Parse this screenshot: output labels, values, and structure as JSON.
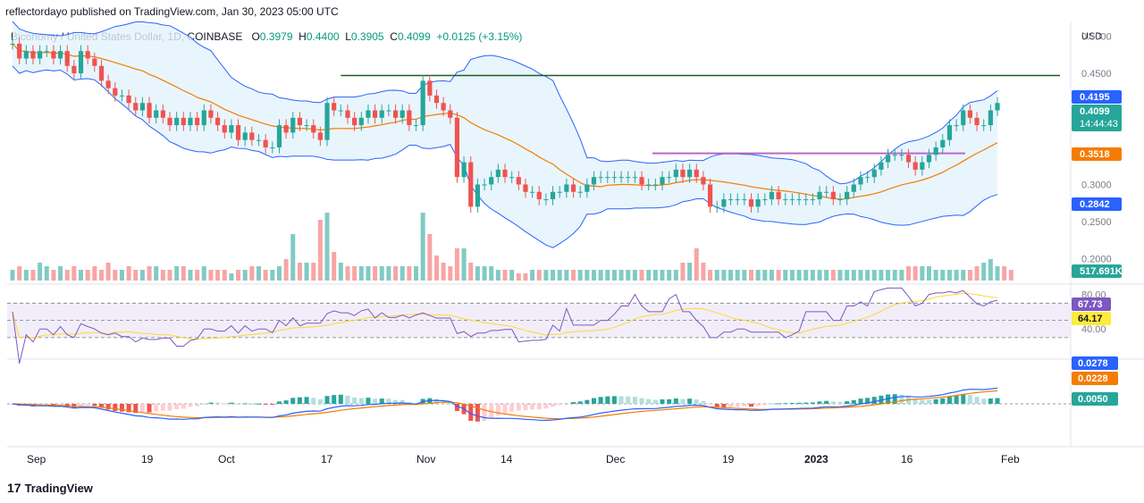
{
  "header": {
    "publisher_line": "reflectordayo published on TradingView.com, Jan 30, 2023 05:00 UTC"
  },
  "legend": {
    "symbol": "Biconomy / United States Dollar, 1D, COINBASE",
    "open_label": "O",
    "open": "0.3979",
    "high_label": "H",
    "high": "0.4400",
    "low_label": "L",
    "low": "0.3905",
    "close_label": "C",
    "close": "0.4099",
    "change": "+0.0125 (+3.15%)"
  },
  "footer": {
    "brand": "TradingView",
    "logo_text": "17"
  },
  "price_axis": {
    "currency": "USD",
    "ticks": [
      "0.5000",
      "0.4500",
      "0.3000",
      "0.2500",
      "0.2000"
    ],
    "labels": [
      {
        "text": "0.4195",
        "color": "#2962ff"
      },
      {
        "text": "0.4099",
        "color": "#26a69a",
        "countdown": "14:44:43"
      },
      {
        "text": "0.3518",
        "color": "#f57c00"
      },
      {
        "text": "0.2842",
        "color": "#2962ff"
      },
      {
        "text": "517.691K",
        "color": "#26a69a"
      }
    ]
  },
  "rsi_axis": {
    "ticks": [
      "80.00",
      "40.00"
    ],
    "labels": [
      {
        "text": "67.73",
        "color": "#7e57c2"
      },
      {
        "text": "64.17",
        "color": "#ffeb3b"
      }
    ]
  },
  "macd_axis": {
    "labels": [
      {
        "text": "0.0278",
        "color": "#2962ff"
      },
      {
        "text": "0.0228",
        "color": "#f57c00"
      },
      {
        "text": "0.0050",
        "color": "#26a69a"
      }
    ]
  },
  "time_axis": [
    "Sep",
    "19",
    "Oct",
    "17",
    "Nov",
    "14",
    "Dec",
    "19",
    "2023",
    "16",
    "Feb"
  ],
  "chart_data": {
    "type": "candlestick",
    "colors": {
      "up": "#26a69a",
      "down": "#ef5350",
      "bb": "#2962ff",
      "mid": "#f57c00",
      "resistance": "#1b5e20",
      "support": "#ba68c8"
    },
    "price_range": [
      0.18,
      0.52
    ],
    "resistance_level": 0.447,
    "support_level": 0.342,
    "closes": [
      0.49,
      0.47,
      0.48,
      0.47,
      0.48,
      0.48,
      0.47,
      0.48,
      0.46,
      0.45,
      0.48,
      0.47,
      0.46,
      0.44,
      0.43,
      0.42,
      0.42,
      0.41,
      0.4,
      0.41,
      0.39,
      0.4,
      0.39,
      0.38,
      0.39,
      0.38,
      0.39,
      0.38,
      0.4,
      0.39,
      0.38,
      0.37,
      0.38,
      0.36,
      0.37,
      0.36,
      0.36,
      0.35,
      0.35,
      0.38,
      0.37,
      0.39,
      0.38,
      0.38,
      0.37,
      0.36,
      0.41,
      0.4,
      0.4,
      0.39,
      0.38,
      0.39,
      0.4,
      0.39,
      0.4,
      0.4,
      0.39,
      0.4,
      0.38,
      0.38,
      0.44,
      0.42,
      0.41,
      0.4,
      0.39,
      0.31,
      0.33,
      0.27,
      0.3,
      0.3,
      0.31,
      0.32,
      0.31,
      0.31,
      0.3,
      0.29,
      0.29,
      0.28,
      0.28,
      0.29,
      0.29,
      0.3,
      0.29,
      0.29,
      0.3,
      0.31,
      0.31,
      0.31,
      0.31,
      0.31,
      0.31,
      0.31,
      0.3,
      0.3,
      0.3,
      0.31,
      0.31,
      0.32,
      0.31,
      0.32,
      0.31,
      0.3,
      0.27,
      0.27,
      0.28,
      0.28,
      0.28,
      0.28,
      0.27,
      0.28,
      0.28,
      0.29,
      0.28,
      0.28,
      0.28,
      0.28,
      0.28,
      0.28,
      0.29,
      0.29,
      0.28,
      0.28,
      0.29,
      0.3,
      0.31,
      0.31,
      0.32,
      0.33,
      0.34,
      0.34,
      0.34,
      0.33,
      0.32,
      0.33,
      0.34,
      0.35,
      0.36,
      0.38,
      0.38,
      0.4,
      0.39,
      0.38,
      0.38,
      0.4,
      0.41
    ],
    "volumes": [
      0.3,
      0.4,
      0.3,
      0.3,
      0.5,
      0.4,
      0.3,
      0.4,
      0.3,
      0.4,
      0.3,
      0.3,
      0.4,
      0.3,
      0.5,
      0.3,
      0.3,
      0.4,
      0.3,
      0.3,
      0.4,
      0.4,
      0.3,
      0.3,
      0.4,
      0.4,
      0.3,
      0.3,
      0.4,
      0.3,
      0.3,
      0.3,
      0.2,
      0.3,
      0.3,
      0.4,
      0.4,
      0.3,
      0.3,
      0.4,
      0.6,
      1.3,
      0.5,
      0.5,
      0.5,
      1.7,
      1.9,
      0.8,
      0.5,
      0.4,
      0.4,
      0.4,
      0.4,
      0.4,
      0.4,
      0.4,
      0.4,
      0.4,
      0.4,
      0.4,
      1.9,
      1.3,
      0.7,
      0.5,
      0.4,
      0.9,
      0.9,
      0.5,
      0.4,
      0.4,
      0.4,
      0.3,
      0.3,
      0.3,
      0.2,
      0.2,
      0.3,
      0.3,
      0.3,
      0.3,
      0.3,
      0.3,
      0.3,
      0.3,
      0.3,
      0.3,
      0.3,
      0.3,
      0.3,
      0.3,
      0.3,
      0.3,
      0.3,
      0.3,
      0.3,
      0.3,
      0.3,
      0.3,
      0.5,
      0.5,
      0.9,
      0.5,
      0.3,
      0.3,
      0.3,
      0.3,
      0.3,
      0.3,
      0.3,
      0.3,
      0.3,
      0.3,
      0.3,
      0.3,
      0.3,
      0.3,
      0.3,
      0.3,
      0.3,
      0.3,
      0.3,
      0.3,
      0.3,
      0.3,
      0.3,
      0.3,
      0.3,
      0.3,
      0.3,
      0.3,
      0.3,
      0.4,
      0.4,
      0.4,
      0.4,
      0.3,
      0.3,
      0.3,
      0.3,
      0.3,
      0.3,
      0.4,
      0.5,
      0.6,
      0.4,
      0.4,
      0.3
    ]
  }
}
